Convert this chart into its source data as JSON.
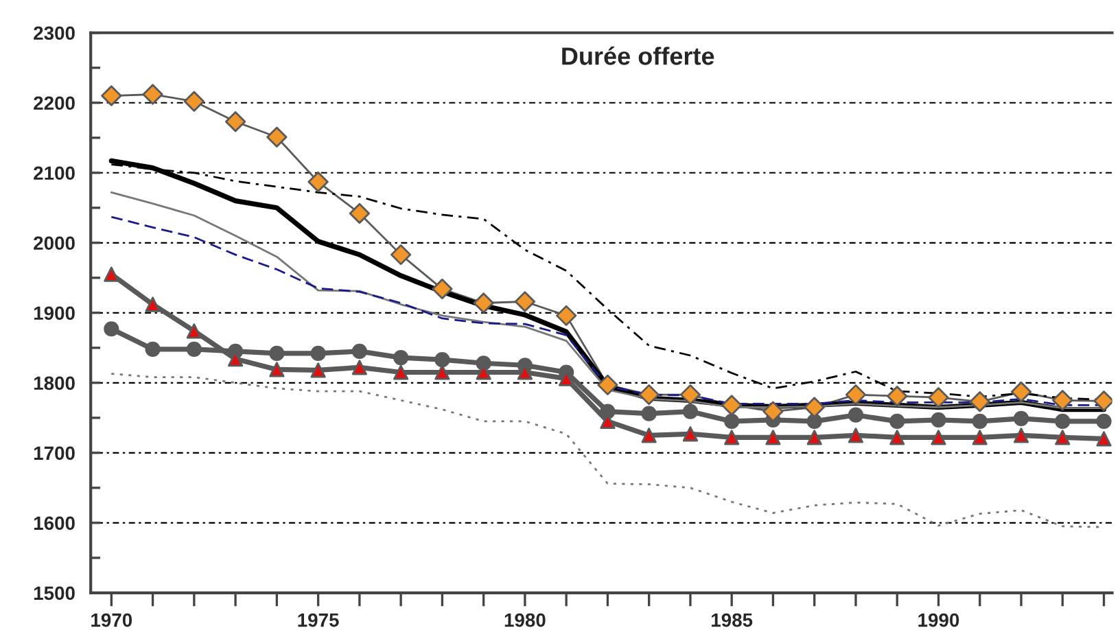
{
  "chart_data": {
    "type": "line",
    "title": "Durée offerte",
    "x": [
      1970,
      1971,
      1972,
      1973,
      1974,
      1975,
      1976,
      1977,
      1978,
      1979,
      1980,
      1981,
      1982,
      1983,
      1984,
      1985,
      1986,
      1987,
      1988,
      1989,
      1990,
      1991,
      1992,
      1993,
      1994
    ],
    "xlim": [
      1969.5,
      1994.2
    ],
    "xticks": [
      1970,
      {
        "value": 1971,
        "label": null
      },
      {
        "value": 1972,
        "label": null
      },
      {
        "value": 1973,
        "label": null
      },
      {
        "value": 1974,
        "label": null
      },
      1975,
      {
        "value": 1976,
        "label": null
      },
      {
        "value": 1977,
        "label": null
      },
      {
        "value": 1978,
        "label": null
      },
      {
        "value": 1979,
        "label": null
      },
      1980,
      {
        "value": 1981,
        "label": null
      },
      {
        "value": 1982,
        "label": null
      },
      {
        "value": 1983,
        "label": null
      },
      {
        "value": 1984,
        "label": null
      },
      1985,
      {
        "value": 1986,
        "label": null
      },
      {
        "value": 1987,
        "label": null
      },
      {
        "value": 1988,
        "label": null
      },
      {
        "value": 1989,
        "label": null
      },
      1990,
      {
        "value": 1991,
        "label": null
      },
      {
        "value": 1992,
        "label": null
      },
      {
        "value": 1993,
        "label": null
      },
      {
        "value": 1994,
        "label": null
      }
    ],
    "ylim": [
      1500,
      2300
    ],
    "yticks": [
      1500,
      {
        "value": 1550,
        "label": null
      },
      1600,
      {
        "value": 1650,
        "label": null
      },
      1700,
      {
        "value": 1750,
        "label": null
      },
      1800,
      {
        "value": 1850,
        "label": null
      },
      1900,
      {
        "value": 1950,
        "label": null
      },
      2000,
      {
        "value": 2050,
        "label": null
      },
      2100,
      {
        "value": 2150,
        "label": null
      },
      2200,
      {
        "value": 2250,
        "label": null
      },
      2300
    ],
    "grid": "y",
    "legend": false,
    "series": [
      {
        "color": "#595959",
        "colors": [
          "#f0962a",
          "#f0962a",
          "#f0962a",
          "#f0962a",
          "#f0962a",
          "#f0962a",
          "#f0962a",
          "#f0962a",
          "#f0962a",
          "#f0962a",
          "#f0962a",
          "#f0962a",
          "#f0962a",
          "#f0962a",
          "#f0962a",
          "#f0962a",
          "#f0962a",
          "#f0962a",
          "#f0962a",
          "#f0962a",
          "#f0962a",
          "#f0962a",
          "#f0962a",
          "#f0962a",
          "#f0962a"
        ],
        "marker": "diamond",
        "line_style": "solid",
        "values": [
          2210,
          2212,
          2202,
          2173,
          2151,
          2087,
          2042,
          1983,
          1934,
          1914,
          1916,
          1896,
          1797,
          1783,
          1783,
          1768,
          1759,
          1765,
          1783,
          1781,
          1779,
          1773,
          1787,
          1775,
          1774
        ]
      },
      {
        "color": "#000000",
        "marker": "none",
        "line_style": "solid",
        "values": [
          2117,
          2107,
          2085,
          2060,
          2050,
          2002,
          1983,
          1953,
          1930,
          1910,
          1897,
          1873,
          1795,
          1778,
          1775,
          1768,
          1766,
          1768,
          1771,
          1768,
          1765,
          1768,
          1772,
          1762,
          1762
        ]
      },
      {
        "color": "#777777",
        "marker": "none",
        "line_style": "solid",
        "values": [
          2072,
          2056,
          2039,
          2010,
          1980,
          1932,
          1931,
          1912,
          1896,
          1887,
          1880,
          1860,
          1790,
          1777,
          1774,
          1765,
          1765,
          1766,
          1770,
          1767,
          1765,
          1768,
          1772,
          1764,
          1764
        ]
      },
      {
        "color": "#1a1a8c",
        "marker": "none",
        "line_style": "dashed",
        "values": [
          2037,
          2022,
          2008,
          1983,
          1962,
          1935,
          1930,
          1914,
          1892,
          1885,
          1884,
          1868,
          1795,
          1783,
          1782,
          1770,
          1770,
          1770,
          1775,
          1772,
          1772,
          1772,
          1777,
          1768,
          1768
        ]
      },
      {
        "color": "#000000",
        "marker": "none",
        "line_style": "dashdot",
        "values": [
          2112,
          2105,
          2100,
          2088,
          2080,
          2072,
          2066,
          2049,
          2040,
          2034,
          1990,
          1960,
          1905,
          1853,
          1839,
          1814,
          1792,
          1802,
          1816,
          1788,
          1785,
          1780,
          1785,
          1778,
          1776
        ]
      },
      {
        "color": "#777777",
        "marker": "none",
        "line_style": "dotted",
        "values": [
          1813,
          1808,
          1808,
          1800,
          1792,
          1788,
          1788,
          1775,
          1762,
          1745,
          1745,
          1727,
          1656,
          1655,
          1650,
          1630,
          1614,
          1625,
          1629,
          1627,
          1596,
          1613,
          1618,
          1595,
          1594
        ]
      },
      {
        "color": "#595959",
        "marker": "circle",
        "line_style": "solid",
        "values": [
          1877,
          1848,
          1848,
          1845,
          1842,
          1842,
          1845,
          1836,
          1833,
          1828,
          1825,
          1815,
          1759,
          1756,
          1759,
          1745,
          1747,
          1745,
          1754,
          1745,
          1747,
          1745,
          1749,
          1745,
          1745
        ]
      },
      {
        "color": "#595959",
        "colors": [
          "#e01010",
          "#e01010",
          "#e01010",
          "#e01010",
          "#e01010",
          "#e01010",
          "#e01010",
          "#e01010",
          "#e01010",
          "#e01010",
          "#e01010",
          "#e01010",
          "#e01010",
          "#e01010",
          "#e01010",
          "#e01010",
          "#e01010",
          "#e01010",
          "#e01010",
          "#e01010",
          "#e01010",
          "#e01010",
          "#e01010",
          "#e01010",
          "#e01010"
        ],
        "marker": "triangle",
        "line_style": "solid",
        "values": [
          1955,
          1912,
          1874,
          1834,
          1819,
          1818,
          1822,
          1815,
          1815,
          1815,
          1815,
          1806,
          1745,
          1725,
          1727,
          1722,
          1722,
          1722,
          1725,
          1722,
          1722,
          1722,
          1725,
          1722,
          1720
        ]
      }
    ]
  }
}
